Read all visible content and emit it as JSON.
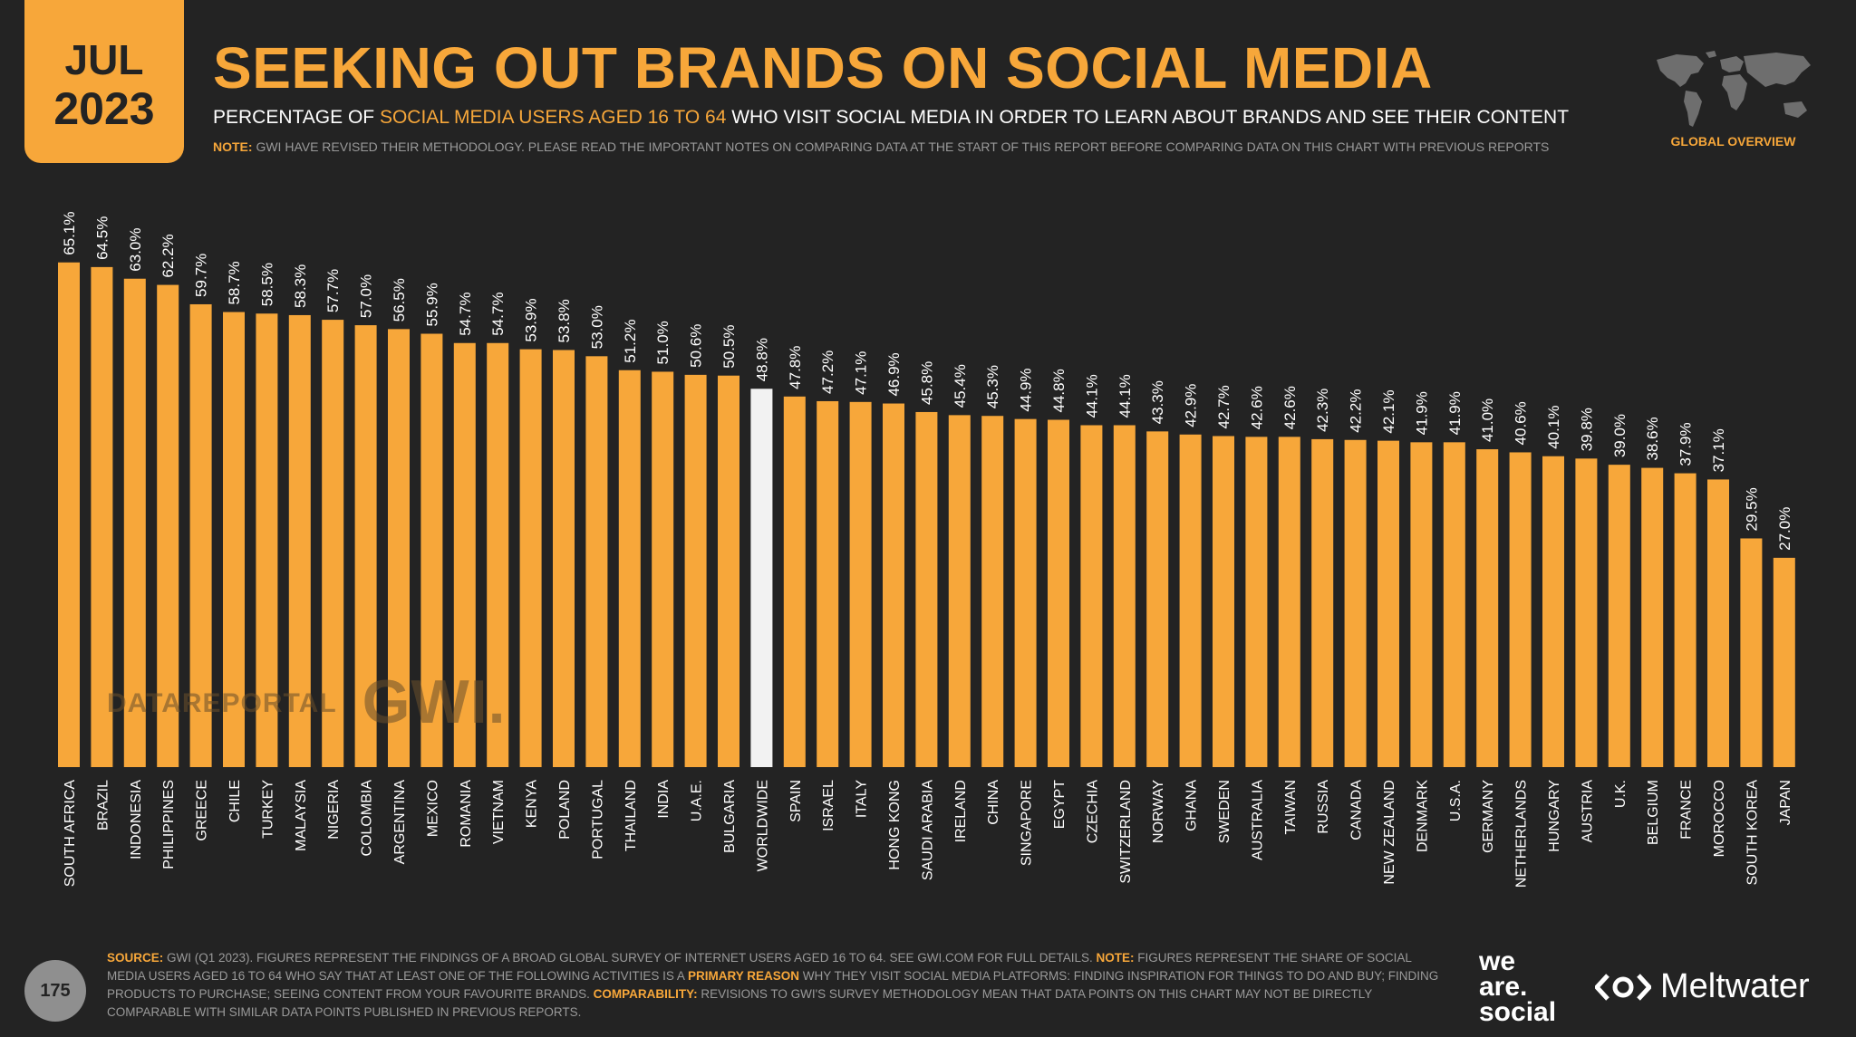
{
  "badge": {
    "month": "JUL",
    "year": "2023"
  },
  "header": {
    "title": "SEEKING OUT BRANDS ON SOCIAL MEDIA",
    "subtitle_pre": "PERCENTAGE OF ",
    "subtitle_hl": "SOCIAL MEDIA USERS AGED 16 TO 64",
    "subtitle_post": " WHO VISIT SOCIAL MEDIA IN ORDER TO LEARN ABOUT BRANDS AND SEE THEIR CONTENT",
    "note_label": "NOTE:",
    "note_text": " GWI HAVE REVISED THEIR METHODOLOGY. PLEASE READ THE IMPORTANT NOTES ON COMPARING DATA AT THE START OF THIS REPORT BEFORE COMPARING DATA ON THIS CHART WITH PREVIOUS REPORTS",
    "region_label": "GLOBAL OVERVIEW"
  },
  "watermark": {
    "brand1": "DATAREPORTAL",
    "brand2": "GWI."
  },
  "footer": {
    "page_number": "175",
    "source_label": "SOURCE:",
    "source_text": " GWI (Q1 2023). FIGURES REPRESENT THE FINDINGS OF A BROAD GLOBAL SURVEY OF INTERNET USERS AGED 16 TO 64. SEE GWI.COM FOR FULL DETAILS. ",
    "note_label": "NOTE:",
    "note_text": " FIGURES REPRESENT THE SHARE OF SOCIAL MEDIA USERS AGED 16 TO 64 WHO SAY THAT AT LEAST ONE OF THE FOLLOWING ACTIVITIES IS A ",
    "primary_reason": "PRIMARY REASON",
    "note_text2": " WHY THEY VISIT SOCIAL MEDIA PLATFORMS: FINDING INSPIRATION FOR THINGS TO DO AND BUY; FINDING PRODUCTS TO PURCHASE; SEEING CONTENT FROM YOUR FAVOURITE BRANDS. ",
    "comparability_label": "COMPARABILITY:",
    "comparability_text": " REVISIONS TO GWI'S SURVEY METHODOLOGY MEAN THAT DATA POINTS ON THIS CHART MAY NOT BE DIRECTLY COMPARABLE WITH SIMILAR DATA POINTS PUBLISHED IN PREVIOUS REPORTS.",
    "logo1_line1": "we",
    "logo1_line2": "are.",
    "logo1_line3": "social",
    "logo2": "Meltwater"
  },
  "colors": {
    "bar": "#f7a73a",
    "highlight_bar": "#f2f2f2",
    "background": "#232323"
  },
  "icons": {
    "map": "world-map-icon",
    "meltwater": "meltwater-logo-icon"
  },
  "chart_data": {
    "type": "bar",
    "ylim": [
      0,
      100
    ],
    "highlight": "WORLDWIDE",
    "categories": [
      "SOUTH AFRICA",
      "BRAZIL",
      "INDONESIA",
      "PHILIPPINES",
      "GREECE",
      "CHILE",
      "TURKEY",
      "MALAYSIA",
      "NIGERIA",
      "COLOMBIA",
      "ARGENTINA",
      "MEXICO",
      "ROMANIA",
      "VIETNAM",
      "KENYA",
      "POLAND",
      "PORTUGAL",
      "THAILAND",
      "INDIA",
      "U.A.E.",
      "BULGARIA",
      "WORLDWIDE",
      "SPAIN",
      "ISRAEL",
      "ITALY",
      "HONG KONG",
      "SAUDI ARABIA",
      "IRELAND",
      "CHINA",
      "SINGAPORE",
      "EGYPT",
      "CZECHIA",
      "SWITZERLAND",
      "NORWAY",
      "GHANA",
      "SWEDEN",
      "AUSTRALIA",
      "TAIWAN",
      "RUSSIA",
      "CANADA",
      "NEW ZEALAND",
      "DENMARK",
      "U.S.A.",
      "GERMANY",
      "NETHERLANDS",
      "HUNGARY",
      "AUSTRIA",
      "U.K.",
      "BELGIUM",
      "FRANCE",
      "MOROCCO",
      "SOUTH KOREA",
      "JAPAN"
    ],
    "values": [
      65.1,
      64.5,
      63.0,
      62.2,
      59.7,
      58.7,
      58.5,
      58.3,
      57.7,
      57.0,
      56.5,
      55.9,
      54.7,
      54.7,
      53.9,
      53.8,
      53.0,
      51.2,
      51.0,
      50.6,
      50.5,
      48.8,
      47.8,
      47.2,
      47.1,
      46.9,
      45.8,
      45.4,
      45.3,
      44.9,
      44.8,
      44.1,
      44.1,
      43.3,
      42.9,
      42.7,
      42.6,
      42.6,
      42.3,
      42.2,
      42.1,
      41.9,
      41.9,
      41.0,
      40.6,
      40.1,
      39.8,
      39.0,
      38.6,
      37.9,
      37.1,
      29.5,
      27.0
    ],
    "labels": [
      "65.1%",
      "64.5%",
      "63.0%",
      "62.2%",
      "59.7%",
      "58.7%",
      "58.5%",
      "58.3%",
      "57.7%",
      "57.0%",
      "56.5%",
      "55.9%",
      "54.7%",
      "54.7%",
      "53.9%",
      "53.8%",
      "53.0%",
      "51.2%",
      "51.0%",
      "50.6%",
      "50.5%",
      "48.8%",
      "47.8%",
      "47.2%",
      "47.1%",
      "46.9%",
      "45.8%",
      "45.4%",
      "45.3%",
      "44.9%",
      "44.8%",
      "44.1%",
      "44.1%",
      "43.3%",
      "42.9%",
      "42.7%",
      "42.6%",
      "42.6%",
      "42.3%",
      "42.2%",
      "42.1%",
      "41.9%",
      "41.9%",
      "41.0%",
      "40.6%",
      "40.1%",
      "39.8%",
      "39.0%",
      "38.6%",
      "37.9%",
      "37.1%",
      "29.5%",
      "27.0%"
    ]
  }
}
